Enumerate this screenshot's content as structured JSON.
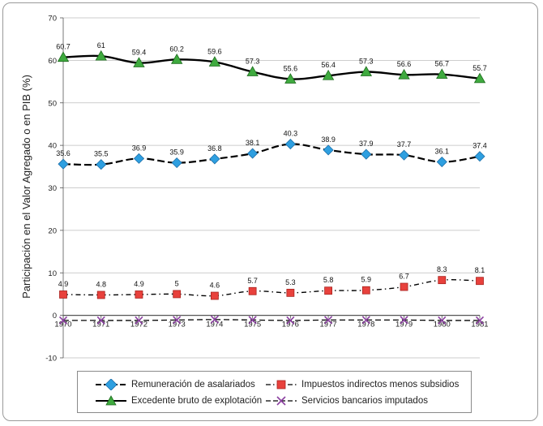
{
  "chart_data": {
    "type": "line",
    "title": "",
    "xlabel": "",
    "ylabel": "Participación en el Valor Agregado o en PIB (%)",
    "ylim": [
      -10,
      70
    ],
    "yticks": [
      -10,
      0,
      10,
      20,
      30,
      40,
      50,
      60,
      70
    ],
    "categories": [
      "1970",
      "1971",
      "1972",
      "1973",
      "1974",
      "1975",
      "1976",
      "1977",
      "1978",
      "1979",
      "1980",
      "1981"
    ],
    "series": [
      {
        "name": "Excedente bruto de explotación",
        "color": "#3faa3f",
        "marker": "triangle",
        "line": "solid",
        "values": [
          60.7,
          61,
          59.4,
          60.2,
          59.6,
          57.3,
          55.6,
          56.4,
          57.3,
          56.6,
          56.7,
          55.7
        ],
        "labels": [
          "60.7",
          "61",
          "59.4",
          "60.2",
          "59.6",
          "57.3",
          "55.6",
          "56.4",
          "57.3",
          "56.6",
          "56.7",
          "55.7"
        ]
      },
      {
        "name": "Remuneración de asalariados",
        "color": "#2e9fe0",
        "marker": "diamond",
        "line": "dashed",
        "values": [
          35.6,
          35.5,
          36.9,
          35.9,
          36.8,
          38.1,
          40.3,
          38.9,
          37.9,
          37.7,
          36.1,
          37.4
        ],
        "labels": [
          "35.6",
          "35.5",
          "36.9",
          "35.9",
          "36.8",
          "38.1",
          "40.3",
          "38.9",
          "37.9",
          "37.7",
          "36.1",
          "37.4"
        ]
      },
      {
        "name": "Impuestos indirectos menos subsidios",
        "color": "#e8413c",
        "marker": "square",
        "line": "dashdot",
        "values": [
          4.9,
          4.8,
          4.9,
          5,
          4.6,
          5.7,
          5.3,
          5.8,
          5.9,
          6.7,
          8.3,
          8.1
        ],
        "labels": [
          "4.9",
          "4.8",
          "4.9",
          "5",
          "4.6",
          "5.7",
          "5.3",
          "5.8",
          "5.9",
          "6.7",
          "8.3",
          "8.1"
        ]
      },
      {
        "name": "Servicios bancarios imputados",
        "color": "#8a3fa0",
        "marker": "x",
        "line": "dashed",
        "values": [
          -1.2,
          -1.2,
          -1.2,
          -1.1,
          -1.0,
          -1.1,
          -1.2,
          -1.1,
          -1.1,
          -1.1,
          -1.2,
          -1.2
        ]
      }
    ],
    "legend": [
      "Remuneración de asalariados",
      "Impuestos indirectos menos subsidios",
      "Excedente bruto de explotación",
      "Servicios bancarios imputados"
    ],
    "legend_position": "bottom",
    "grid": true
  }
}
